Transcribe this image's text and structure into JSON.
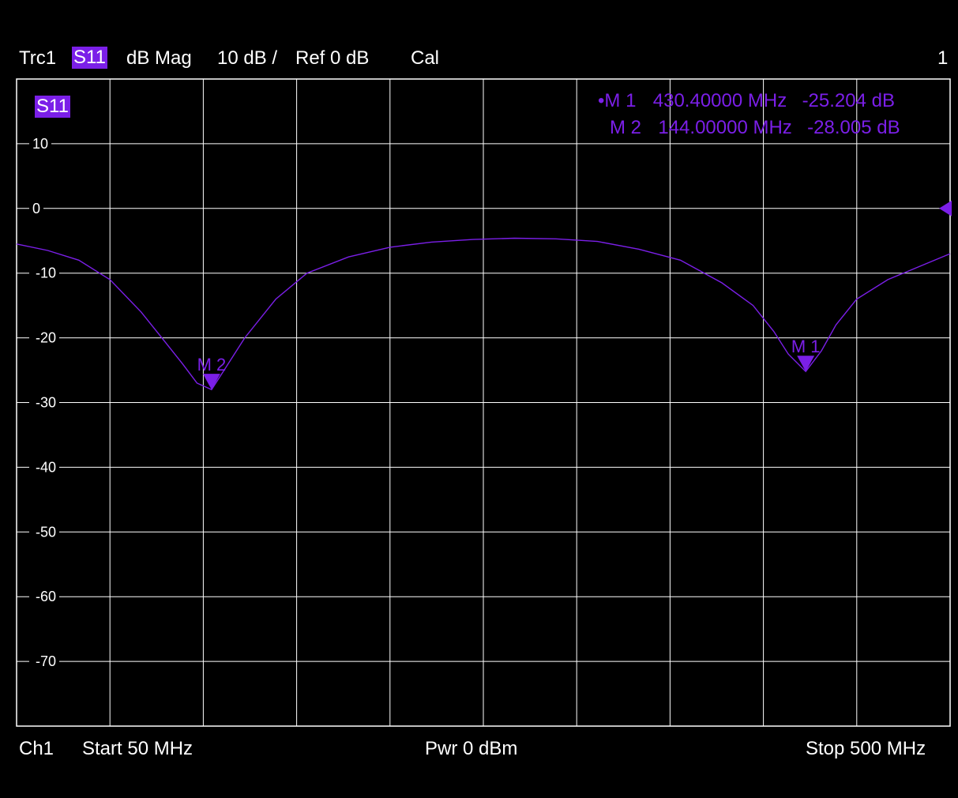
{
  "header": {
    "trace": "Trc1",
    "param": "S11",
    "format": "dB Mag",
    "scale": "10 dB /",
    "ref": "Ref 0 dB",
    "cal": "Cal",
    "window_number": "1"
  },
  "trace_badge": "S11",
  "markers": [
    {
      "name": "M 1",
      "label": "M 1",
      "bullet": "•",
      "freq_text": "430.40000 MHz",
      "value_text": "-25.204 dB",
      "freq_mhz": 430.4,
      "value_db": -25.204,
      "active": true
    },
    {
      "name": "M 2",
      "label": "M 2",
      "bullet": "",
      "freq_text": "144.00000 MHz",
      "value_text": "-28.005 dB",
      "freq_mhz": 144.0,
      "value_db": -28.005,
      "active": false
    }
  ],
  "footer": {
    "channel": "Ch1",
    "start": "Start  50 MHz",
    "power": "Pwr  0 dBm",
    "stop": "Stop  500 MHz"
  },
  "colors": {
    "trace": "#7b1fe8",
    "grid": "#ffffff",
    "background": "#000000"
  },
  "chart_data": {
    "type": "line",
    "title": "",
    "xlabel": "",
    "ylabel": "",
    "xlim": [
      50,
      500
    ],
    "ylim": [
      -80,
      20
    ],
    "yticks": [
      10,
      0,
      -10,
      -20,
      -30,
      -40,
      -50,
      -60,
      -70
    ],
    "ytick_labels": [
      "10",
      "0",
      "-10",
      "-20",
      "-30",
      "-40",
      "-50",
      "-60",
      "-70"
    ],
    "ref_level": 0,
    "grid": true,
    "series": [
      {
        "x": [
          50,
          65,
          80,
          95,
          110,
          120,
          130,
          137,
          144,
          150,
          160,
          175,
          190,
          210,
          230,
          250,
          270,
          290,
          310,
          330,
          350,
          370,
          390,
          405,
          415,
          422,
          430.4,
          438,
          445,
          455,
          470,
          485,
          500
        ],
        "y": [
          -5.5,
          -6.5,
          -8,
          -11,
          -16,
          -20,
          -24,
          -27,
          -28.0,
          -25,
          -20,
          -14,
          -10,
          -7.5,
          -6,
          -5.2,
          -4.8,
          -4.6,
          -4.7,
          -5.1,
          -6.3,
          -8,
          -11.5,
          -15,
          -19,
          -22.5,
          -25.2,
          -22,
          -18,
          -14,
          -11,
          -9,
          -7
        ]
      }
    ]
  }
}
